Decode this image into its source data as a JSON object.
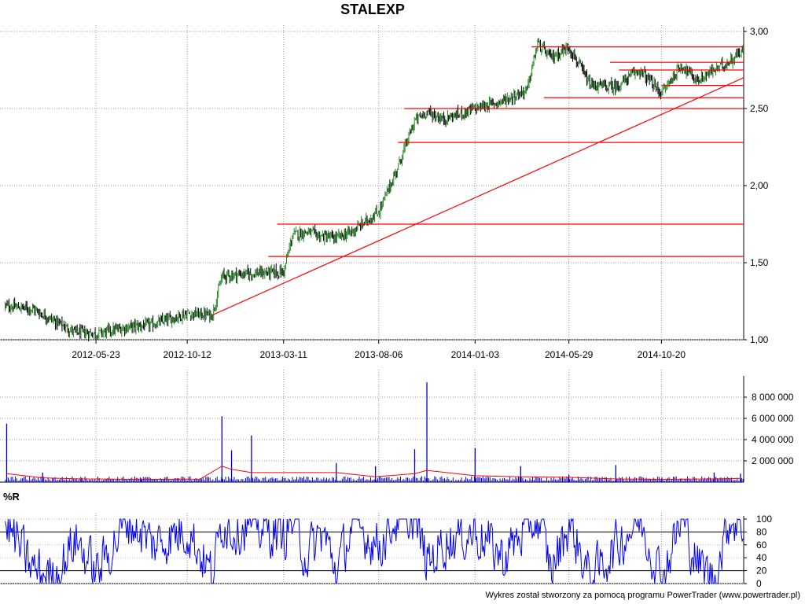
{
  "chart_data": [
    {
      "type": "candlestick",
      "title": "STALEXP",
      "x": [
        "2012-01-02",
        "2012-02-15",
        "2012-03-20",
        "2012-04-20",
        "2012-05-23",
        "2012-07-10",
        "2012-08-20",
        "2012-10-12",
        "2012-11-20",
        "2012-12-05",
        "2012-12-20",
        "2013-01-20",
        "2013-03-11",
        "2013-03-25",
        "2013-04-15",
        "2013-05-10",
        "2013-06-01",
        "2013-06-25",
        "2013-08-06",
        "2013-09-01",
        "2013-10-01",
        "2013-10-20",
        "2013-11-15",
        "2014-01-03",
        "2014-02-15",
        "2014-03-25",
        "2014-04-10",
        "2014-05-01",
        "2014-05-29",
        "2014-07-01",
        "2014-08-10",
        "2014-09-15",
        "2014-10-20",
        "2014-11-20",
        "2014-12-15",
        "2015-01-10",
        "2015-02-01",
        "2015-02-20"
      ],
      "y": [
        1.22,
        1.2,
        1.12,
        1.05,
        1.04,
        1.08,
        1.1,
        1.17,
        1.16,
        1.41,
        1.42,
        1.43,
        1.44,
        1.68,
        1.7,
        1.67,
        1.66,
        1.7,
        1.83,
        2.08,
        2.42,
        2.48,
        2.43,
        2.5,
        2.55,
        2.62,
        2.92,
        2.83,
        2.9,
        2.65,
        2.64,
        2.75,
        2.6,
        2.78,
        2.68,
        2.75,
        2.8,
        2.87
      ],
      "x_tick_labels": [
        "2012-05-23",
        "2012-10-12",
        "2013-03-11",
        "2013-08-06",
        "2014-01-03",
        "2014-05-29",
        "2014-10-20"
      ],
      "y_tick_labels": [
        "1,00",
        "1,50",
        "2,00",
        "2,50",
        "3,00"
      ],
      "ylim": [
        1.0,
        3.0
      ],
      "support_resistance_levels": [
        2.9,
        2.8,
        2.75,
        2.65,
        2.57,
        2.5,
        2.28,
        1.75,
        1.54
      ],
      "trendline": {
        "from": {
          "x": "2012-11-20",
          "y": 1.16
        },
        "to": {
          "x": "2015-02-25",
          "y": 2.7
        }
      },
      "grid": true,
      "colors": {
        "up": "#1f8a1f",
        "down": "#000000",
        "levels": "#ff0000"
      }
    },
    {
      "type": "bar",
      "title": "",
      "x": [
        "2012-01-05",
        "2012-03-01",
        "2012-05-01",
        "2012-08-01",
        "2012-11-01",
        "2012-12-05",
        "2012-12-20",
        "2013-01-20",
        "2013-06-01",
        "2013-08-01",
        "2013-10-01",
        "2013-10-20",
        "2014-01-03",
        "2014-03-15",
        "2014-05-29",
        "2014-08-10",
        "2014-10-20",
        "2015-01-10",
        "2015-02-20"
      ],
      "values": [
        5500000,
        900000,
        400000,
        350000,
        350000,
        6200000,
        3000000,
        4400000,
        1800000,
        1500000,
        3100000,
        9400000,
        3200000,
        1500000,
        700000,
        1600000,
        300000,
        900000,
        800000
      ],
      "moving_average": [
        800000,
        400000,
        300000,
        250000,
        280000,
        1500000,
        1200000,
        900000,
        900000,
        500000,
        800000,
        1100000,
        600000,
        500000,
        450000,
        300000,
        250000,
        300000,
        350000
      ],
      "y_tick_labels": [
        "2 000 000",
        "4 000 000",
        "6 000 000",
        "8 000 000"
      ],
      "ylim": [
        0,
        10000000
      ],
      "grid": true,
      "colors": {
        "bars": "#0000cc",
        "moving_average": "#ff0000"
      }
    },
    {
      "type": "line",
      "title": "%R",
      "x": [
        "2012-01-02",
        "2012-02-15",
        "2012-03-20",
        "2012-04-20",
        "2012-05-23",
        "2012-07-10",
        "2012-08-20",
        "2012-10-12",
        "2012-11-20",
        "2012-12-05",
        "2012-12-20",
        "2013-01-20",
        "2013-03-11",
        "2013-03-25",
        "2013-04-15",
        "2013-05-10",
        "2013-06-01",
        "2013-06-25",
        "2013-08-06",
        "2013-09-01",
        "2013-10-01",
        "2013-10-20",
        "2013-11-15",
        "2014-01-03",
        "2014-02-15",
        "2014-03-25",
        "2014-04-10",
        "2014-05-01",
        "2014-05-29",
        "2014-07-01",
        "2014-08-10",
        "2014-09-15",
        "2014-10-20",
        "2014-11-20",
        "2014-12-15",
        "2015-01-10",
        "2015-02-01",
        "2015-02-20"
      ],
      "values": [
        95,
        20,
        10,
        70,
        15,
        100,
        60,
        85,
        10,
        100,
        85,
        90,
        75,
        100,
        40,
        80,
        20,
        90,
        60,
        100,
        98,
        30,
        65,
        80,
        40,
        90,
        100,
        20,
        95,
        5,
        60,
        100,
        10,
        100,
        30,
        5,
        100,
        95
      ],
      "y_tick_labels": [
        "0",
        "20",
        "40",
        "60",
        "80",
        "100"
      ],
      "ylim": [
        0,
        100
      ],
      "reference_lines": [
        20,
        80
      ],
      "grid": true,
      "colors": {
        "line": "#0000ee"
      }
    }
  ],
  "labels": {
    "title": "STALEXP",
    "indicator": "%R",
    "footer": "Wykres został stworzony za pomocą programu PowerTrader (www.powertrader.pl)"
  }
}
